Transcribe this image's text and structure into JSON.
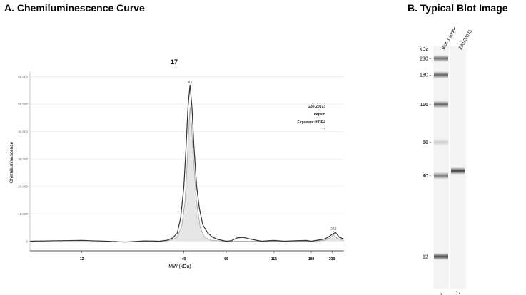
{
  "panels": {
    "a_title": "A. Chemiluminescence Curve",
    "b_title": "B. Typical Blot Image"
  },
  "chart_data": {
    "type": "line",
    "title": "17",
    "xlabel": "MW (kDa)",
    "ylabel": "Chemiluminescence",
    "x_scale": "log",
    "xlim": [
      6.5,
      265
    ],
    "ylim": [
      -3500,
      62000
    ],
    "x_ticks": [
      12,
      40,
      66,
      116,
      180,
      230
    ],
    "x_tick_labels": [
      "12",
      "40",
      "66",
      "116",
      "180",
      "230"
    ],
    "y_ticks": [
      0,
      10000,
      20000,
      30000,
      40000,
      50000,
      60000
    ],
    "y_tick_labels": [
      "0",
      "10,000",
      "20,000",
      "30,000",
      "40,000",
      "50,000",
      "60,000"
    ],
    "legend_lines": [
      "230-20073",
      "Pepsin",
      "Exposure: HDR4",
      "17"
    ],
    "legend_position": "right",
    "peak_labels": [
      {
        "text": "43",
        "x": 43,
        "y": 56800
      },
      {
        "text": "234",
        "x": 234,
        "y": 3200
      }
    ],
    "series": [
      {
        "role": "raw-trace",
        "color": "#333333",
        "x": [
          6.5,
          9,
          12,
          16,
          20,
          25,
          30,
          33,
          35,
          37,
          38.5,
          40,
          41,
          42,
          43,
          44,
          45,
          46.5,
          48,
          50,
          53,
          56,
          60,
          63,
          66,
          70,
          75,
          80,
          90,
          100,
          116,
          130,
          150,
          170,
          180,
          195,
          210,
          220,
          230,
          240,
          250,
          265
        ],
        "y": [
          0,
          200,
          300,
          0,
          -300,
          100,
          0,
          400,
          1200,
          3000,
          8500,
          20000,
          34000,
          49000,
          57000,
          49000,
          35000,
          20000,
          12000,
          6000,
          3000,
          1500,
          600,
          300,
          0,
          200,
          1200,
          1400,
          600,
          0,
          300,
          0,
          200,
          300,
          0,
          400,
          800,
          1500,
          2500,
          3200,
          1500,
          800
        ]
      },
      {
        "role": "fitted-curve",
        "color": "#aaaaaa",
        "x": [
          30,
          34,
          37,
          39,
          40.5,
          41.5,
          42.3,
          43,
          43.8,
          45,
          46.5,
          48.5,
          51,
          55,
          60,
          66,
          80,
          116,
          180,
          210,
          225,
          234,
          245,
          265
        ],
        "y": [
          0,
          300,
          1500,
          5500,
          14000,
          27000,
          40000,
          49000,
          42000,
          28000,
          14000,
          5000,
          1500,
          400,
          100,
          0,
          0,
          0,
          0,
          300,
          1200,
          2400,
          1000,
          200
        ]
      }
    ]
  },
  "blot": {
    "kda_label": "kDa",
    "lane_labels": [
      "Biot. Ladder",
      "230-20073"
    ],
    "ladder_bands": [
      {
        "label": "230",
        "kda": 230,
        "intensity": 0.55
      },
      {
        "label": "180",
        "kda": 180,
        "intensity": 0.6
      },
      {
        "label": "116",
        "kda": 116,
        "intensity": 0.6
      },
      {
        "label": "66",
        "kda": 66,
        "intensity": 0.15
      },
      {
        "label": "40",
        "kda": 40,
        "intensity": 0.5
      },
      {
        "label": "12",
        "kda": 12,
        "intensity": 0.7
      }
    ],
    "sample_bands": [
      {
        "kda": 43,
        "intensity": 0.75
      }
    ],
    "bottom_lane_numbers": [
      "1",
      "17"
    ]
  }
}
